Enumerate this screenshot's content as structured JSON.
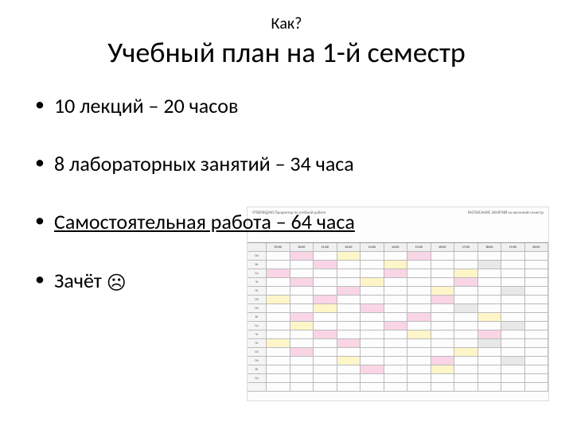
{
  "supertitle": "Как?",
  "title": "Учебный план на 1-й семестр",
  "bullets": {
    "b0": "10 лекций – 20 часов",
    "b1": "8 лабораторных занятий – 34 часа",
    "b2": "Самостоятельная работа – 64 часа",
    "b3_prefix": "Зачёт ",
    "b3_icon": "☹"
  },
  "schedule": {
    "header_left": "УТВЕРЖДАЮ\nПроректор по учебной работе",
    "header_right": "РАСПИСАНИЕ ЗАНЯТИЙ\nна весенний семестр",
    "rows": 16,
    "cols": 12,
    "rowlabs": [
      "",
      "Пн",
      "Вт",
      "Ср",
      "Чт",
      "Пт",
      "Сб",
      "Пн",
      "Вт",
      "Ср",
      "Чт",
      "Пт",
      "Сб",
      "Пн",
      "Вт",
      "Ср"
    ],
    "col_hdrs": [
      "",
      "09:00",
      "10:00",
      "11:00",
      "12:00",
      "13:00",
      "14:00",
      "15:00",
      "16:00",
      "17:00",
      "18:00",
      "19:00",
      "20:00"
    ],
    "cell_colors": {
      "pink": [
        [
          1,
          2
        ],
        [
          1,
          7
        ],
        [
          2,
          3
        ],
        [
          3,
          1
        ],
        [
          3,
          6
        ],
        [
          4,
          2
        ],
        [
          4,
          9
        ],
        [
          5,
          4
        ],
        [
          6,
          3
        ],
        [
          6,
          8
        ],
        [
          7,
          5
        ],
        [
          8,
          2
        ],
        [
          8,
          7
        ],
        [
          9,
          6
        ],
        [
          10,
          3
        ],
        [
          10,
          10
        ],
        [
          11,
          4
        ],
        [
          12,
          2
        ],
        [
          13,
          8
        ],
        [
          14,
          5
        ]
      ],
      "yellow": [
        [
          1,
          4
        ],
        [
          2,
          6
        ],
        [
          3,
          9
        ],
        [
          4,
          5
        ],
        [
          5,
          8
        ],
        [
          6,
          1
        ],
        [
          7,
          3
        ],
        [
          8,
          10
        ],
        [
          9,
          2
        ],
        [
          10,
          7
        ],
        [
          11,
          1
        ],
        [
          12,
          9
        ],
        [
          13,
          4
        ],
        [
          14,
          8
        ]
      ],
      "grey": [
        [
          2,
          10
        ],
        [
          5,
          11
        ],
        [
          7,
          9
        ],
        [
          9,
          11
        ],
        [
          11,
          10
        ],
        [
          13,
          11
        ]
      ]
    }
  },
  "colors": {
    "text": "#000000",
    "background": "#ffffff",
    "pink": "#f9d5e5",
    "yellow": "#fef6c9",
    "grey": "#e8e8e8",
    "grid_border": "#bbbbbb"
  }
}
